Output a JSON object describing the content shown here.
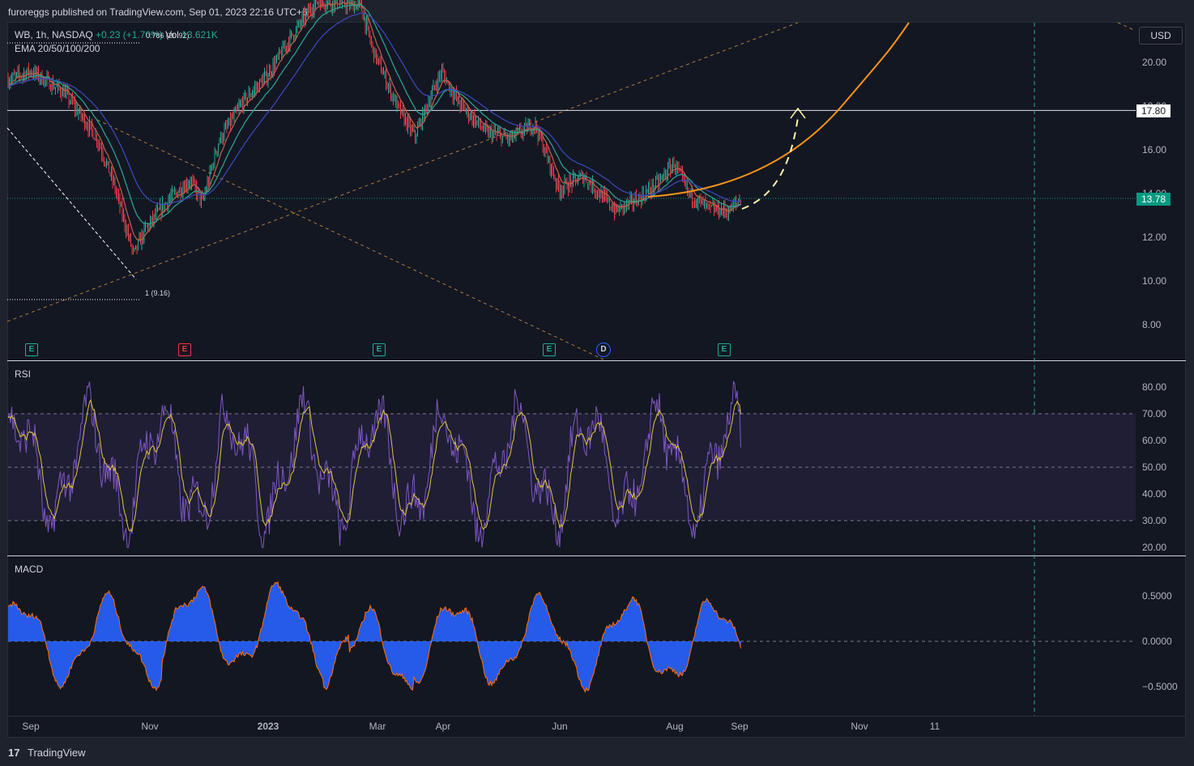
{
  "header": {
    "publisher_text": "furoreggs published on TradingView.com, Sep 01, 2023 22:16 UTC+6"
  },
  "legend": {
    "symbol": "WB, 1h, NASDAQ",
    "change": "+0.23 (+1.70%)",
    "vol_label": "Vol",
    "vol_value": "13.621K",
    "indicator": "EMA 20/50/100/200"
  },
  "fib": {
    "top_label": "0.786 (20.92)",
    "bottom_label": "1 (9.16)"
  },
  "currency": "USD",
  "price_tags": {
    "level": "17.80",
    "last": "13.78"
  },
  "price_axis": [
    "20.00",
    "18.00",
    "16.00",
    "14.00",
    "12.00",
    "10.00",
    "8.00"
  ],
  "rsi": {
    "title": "RSI",
    "axis": [
      "80.00",
      "70.00",
      "60.00",
      "50.00",
      "40.00",
      "30.00",
      "20.00"
    ]
  },
  "macd": {
    "title": "MACD",
    "axis": [
      "0.5000",
      "0.0000",
      "−0.5000"
    ]
  },
  "time_axis": [
    "Sep",
    "Nov",
    "2023",
    "Mar",
    "Apr",
    "Jun",
    "Aug",
    "Sep",
    "Nov",
    "11"
  ],
  "events": [
    {
      "label": "E",
      "kind": "earnings-beat"
    },
    {
      "label": "E",
      "kind": "earnings-miss"
    },
    {
      "label": "E",
      "kind": "earnings-beat"
    },
    {
      "label": "E",
      "kind": "earnings-beat"
    },
    {
      "label": "D",
      "kind": "dividend"
    },
    {
      "label": "E",
      "kind": "earnings-beat"
    }
  ],
  "footer": {
    "logo": "17",
    "brand": "TradingView"
  },
  "colors": {
    "up": "#22ab94",
    "down": "#f23645",
    "rsi_line": "#7e57c2",
    "rsi_signal": "#e0c341",
    "macd_hist": "#2962ff",
    "macd_signal": "#ff6d00",
    "arc": "#f7931a",
    "ema_blue": "#2f3fa8"
  },
  "chart_data": [
    {
      "type": "candlestick",
      "title": "WB, 1h, NASDAQ",
      "ylim": [
        7,
        22
      ],
      "x_ticks": [
        "Sep",
        "Nov",
        "2023",
        "Mar",
        "Apr",
        "Jun",
        "Aug",
        "Sep",
        "Nov",
        "11"
      ],
      "close_path": [
        [
          "Sep",
          19.2
        ],
        [
          "Sep",
          18.6
        ],
        [
          "Oct",
          16.2
        ],
        [
          "Oct",
          13.5
        ],
        [
          "Nov",
          10.4
        ],
        [
          "Nov",
          12.6
        ],
        [
          "Dec",
          14.8
        ],
        [
          "Dec",
          17.5
        ],
        [
          "2023",
          19.5
        ],
        [
          "Jan",
          21.5
        ],
        [
          "Feb",
          23.0
        ],
        [
          "Mar",
          20.5
        ],
        [
          "Mar",
          17.0
        ],
        [
          "Apr",
          19.8
        ],
        [
          "Apr",
          18.0
        ],
        [
          "May",
          16.6
        ],
        [
          "May",
          17.0
        ],
        [
          "Jun",
          13.8
        ],
        [
          "Jun",
          15.4
        ],
        [
          "Jul",
          13.0
        ],
        [
          "Jul",
          14.2
        ],
        [
          "Aug",
          15.5
        ],
        [
          "Aug",
          13.2
        ],
        [
          "Sep",
          13.78
        ]
      ],
      "horizontal_level": 17.8,
      "last_price": 13.78
    },
    {
      "type": "line",
      "title": "RSI",
      "ylim": [
        20,
        85
      ],
      "bands": [
        30,
        50,
        70
      ]
    },
    {
      "type": "histogram",
      "title": "MACD",
      "ylim": [
        -0.7,
        0.8
      ]
    }
  ]
}
